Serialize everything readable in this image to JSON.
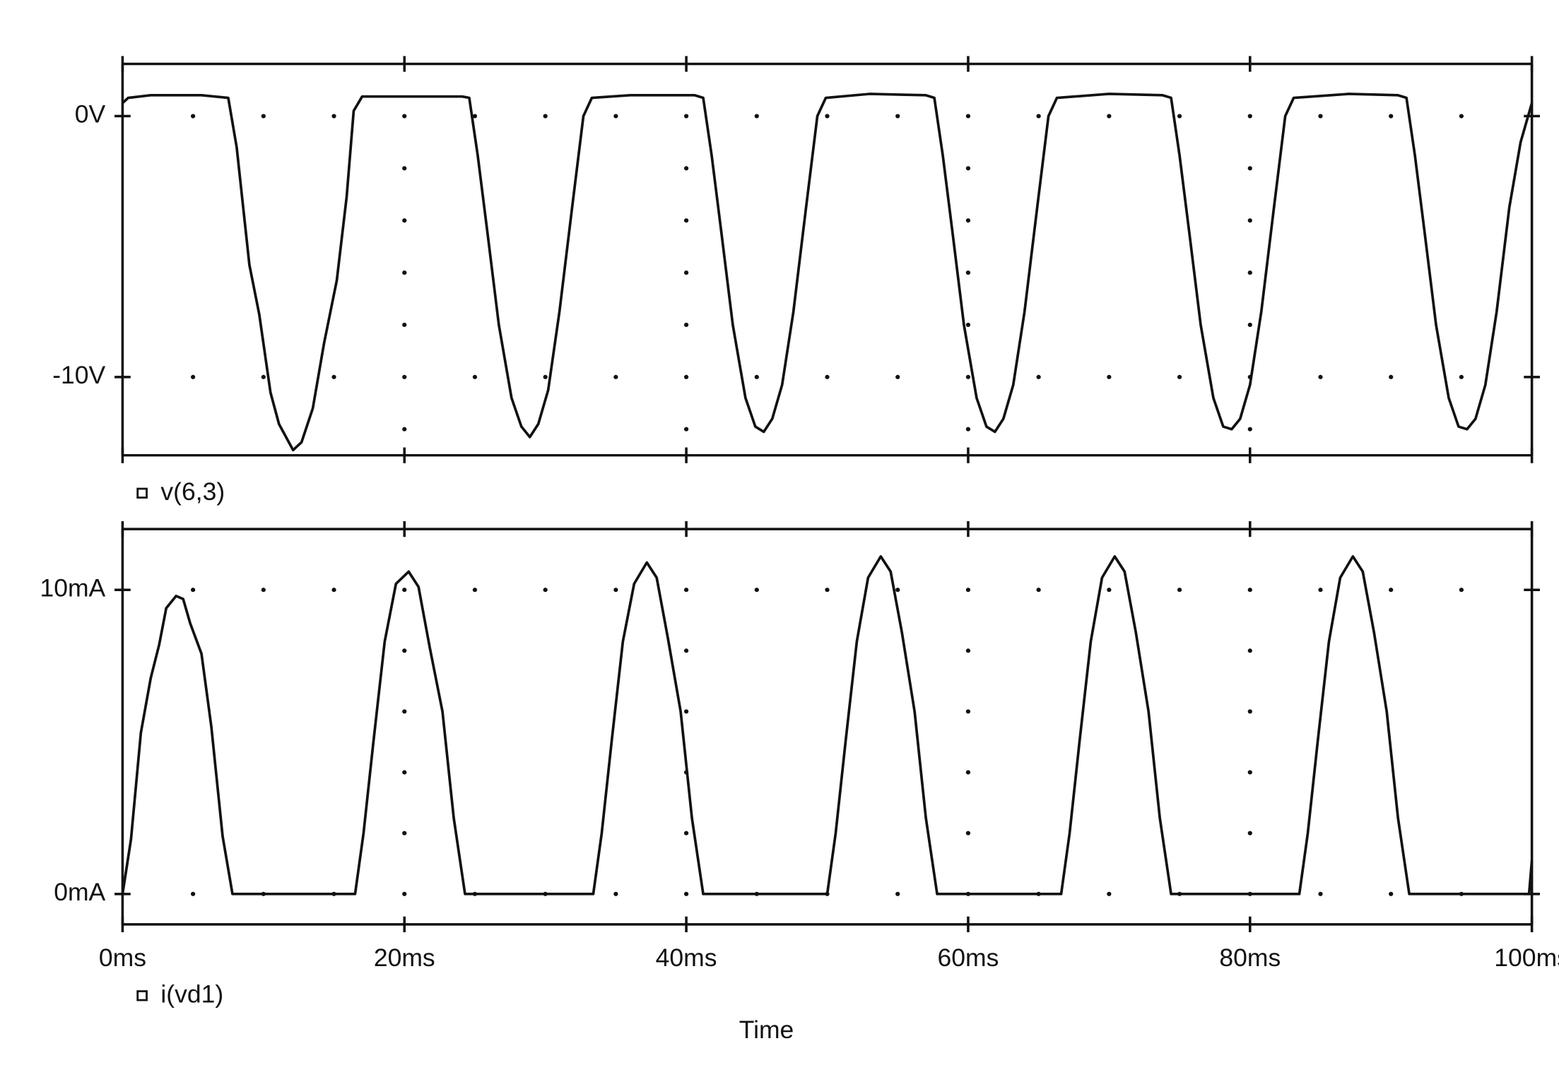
{
  "chart_data": [
    {
      "type": "line",
      "legend": "v(6,3)",
      "xlim": [
        0,
        100
      ],
      "xticks": [
        0,
        20,
        40,
        60,
        80,
        100
      ],
      "xminor_ticks": [
        5,
        10,
        15,
        20,
        25,
        30,
        35,
        40,
        45,
        50,
        55,
        60,
        65,
        70,
        75,
        80,
        85,
        90,
        95
      ],
      "ylim": [
        -13,
        2
      ],
      "yticks": [
        {
          "value": 0,
          "label": "0V"
        },
        {
          "value": -10,
          "label": "-10V"
        }
      ],
      "yminor_ticks": [
        -2,
        -4,
        -6,
        -8,
        -12
      ],
      "color": "#111111",
      "x": [
        0,
        0.4,
        2,
        5.6,
        7.5,
        8.1,
        9,
        9.7,
        10.5,
        11.1,
        12.1,
        12.7,
        13.5,
        14.3,
        15.2,
        15.9,
        16.4,
        17,
        24.1,
        24.6,
        25.2,
        25.9,
        26.7,
        27.6,
        28.3,
        28.9,
        29.5,
        30.2,
        31,
        31.9,
        32.7,
        33.3,
        36,
        40.6,
        41.2,
        41.8,
        42.5,
        43.3,
        44.2,
        44.9,
        45.5,
        46.1,
        46.8,
        47.6,
        48.5,
        49.3,
        49.9,
        53,
        57,
        57.6,
        58.2,
        58.9,
        59.7,
        60.6,
        61.3,
        61.9,
        62.5,
        63.2,
        64,
        64.9,
        65.7,
        66.3,
        70,
        73.8,
        74.4,
        75,
        75.7,
        76.5,
        77.4,
        78.1,
        78.7,
        79.3,
        80,
        80.8,
        81.7,
        82.5,
        83.1,
        87,
        90.5,
        91.1,
        91.7,
        92.4,
        93.2,
        94.1,
        94.8,
        95.4,
        96,
        96.7,
        97.5,
        98.4,
        99.2,
        100
      ],
      "values": [
        0.5,
        0.7,
        0.8,
        0.8,
        0.7,
        -1.2,
        -5.7,
        -7.6,
        -10.6,
        -11.8,
        -12.8,
        -12.5,
        -11.2,
        -8.7,
        -6.3,
        -3.1,
        0.2,
        0.75,
        0.75,
        0.7,
        -1.5,
        -4.5,
        -8,
        -10.8,
        -11.9,
        -12.3,
        -11.8,
        -10.5,
        -7.5,
        -3.5,
        0,
        0.7,
        0.8,
        0.8,
        0.7,
        -1.5,
        -4.5,
        -8,
        -10.8,
        -11.9,
        -12.1,
        -11.6,
        -10.3,
        -7.5,
        -3.5,
        0,
        0.7,
        0.85,
        0.8,
        0.7,
        -1.5,
        -4.5,
        -8,
        -10.8,
        -11.9,
        -12.1,
        -11.6,
        -10.3,
        -7.5,
        -3.5,
        0,
        0.7,
        0.85,
        0.8,
        0.7,
        -1.5,
        -4.5,
        -8,
        -10.8,
        -11.9,
        -12.0,
        -11.6,
        -10.3,
        -7.5,
        -3.5,
        0,
        0.7,
        0.85,
        0.8,
        0.7,
        -1.5,
        -4.5,
        -8,
        -10.8,
        -11.9,
        -12.0,
        -11.6,
        -10.3,
        -7.5,
        -3.5,
        -1,
        0.5
      ]
    },
    {
      "type": "line",
      "legend": "i(vd1)",
      "xlabel": "Time",
      "xlim": [
        0,
        100
      ],
      "xticks": [
        {
          "value": 0,
          "label": "0ms"
        },
        {
          "value": 20,
          "label": "20ms"
        },
        {
          "value": 40,
          "label": "40ms"
        },
        {
          "value": 60,
          "label": "60ms"
        },
        {
          "value": 80,
          "label": "80ms"
        },
        {
          "value": 100,
          "label": "100ms"
        }
      ],
      "xminor_ticks": [
        5,
        10,
        15,
        20,
        25,
        30,
        35,
        40,
        45,
        50,
        55,
        60,
        65,
        70,
        75,
        80,
        85,
        90,
        95
      ],
      "ylim": [
        -1,
        12
      ],
      "yticks": [
        {
          "value": 0,
          "label": "0mA"
        },
        {
          "value": 10,
          "label": "10mA"
        }
      ],
      "yminor_ticks": [
        2,
        4,
        6,
        8
      ],
      "color": "#111111",
      "x": [
        0,
        0.6,
        1.3,
        2,
        2.6,
        3.1,
        3.8,
        4.3,
        4.8,
        5.6,
        6.3,
        7.1,
        7.8,
        16.5,
        17.1,
        17.8,
        18.6,
        19.4,
        20.3,
        21,
        21.8,
        22.7,
        23.5,
        24.3,
        33.4,
        34,
        34.7,
        35.5,
        36.3,
        37.2,
        37.9,
        38.7,
        39.6,
        40.4,
        41.2,
        50,
        50.6,
        51.3,
        52.1,
        52.9,
        53.8,
        54.5,
        55.3,
        56.2,
        57,
        57.8,
        66.6,
        67.2,
        67.9,
        68.7,
        69.5,
        70.4,
        71.1,
        71.9,
        72.8,
        73.6,
        74.4,
        83.5,
        84.1,
        84.8,
        85.6,
        86.4,
        87.3,
        88,
        88.8,
        89.7,
        90.5,
        91.3,
        99.8,
        100
      ],
      "values": [
        0,
        1.8,
        5.3,
        7.1,
        8.2,
        9.4,
        9.8,
        9.7,
        8.9,
        7.9,
        5.5,
        1.9,
        0,
        0,
        2,
        5,
        8.3,
        10.2,
        10.6,
        10.1,
        8.1,
        6,
        2.5,
        0,
        0,
        2,
        5,
        8.3,
        10.2,
        10.9,
        10.4,
        8.4,
        6,
        2.5,
        0,
        0,
        2,
        5,
        8.3,
        10.4,
        11.1,
        10.6,
        8.6,
        6,
        2.5,
        0,
        0,
        2,
        5,
        8.3,
        10.4,
        11.1,
        10.6,
        8.6,
        6,
        2.5,
        0,
        0,
        2,
        5,
        8.3,
        10.4,
        11.1,
        10.6,
        8.6,
        6,
        2.5,
        0,
        0,
        1.1
      ]
    }
  ]
}
